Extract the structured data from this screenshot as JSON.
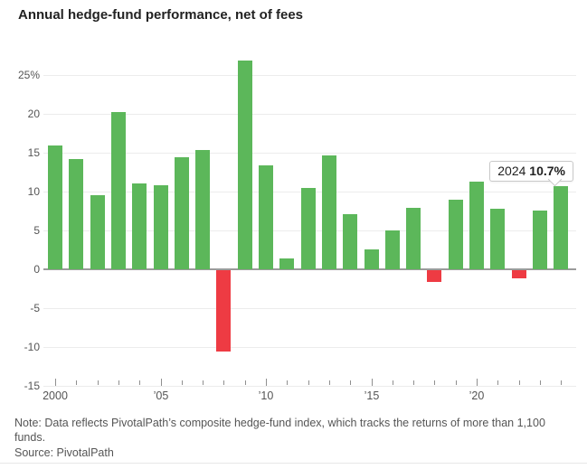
{
  "header": {
    "title": "Annual hedge-fund performance, net of fees"
  },
  "chart_data": {
    "type": "bar",
    "title": "Annual hedge-fund performance, net of fees",
    "categories": [
      2000,
      2001,
      2002,
      2003,
      2004,
      2005,
      2006,
      2007,
      2008,
      2009,
      2010,
      2011,
      2012,
      2013,
      2014,
      2015,
      2016,
      2017,
      2018,
      2019,
      2020,
      2021,
      2022,
      2023,
      2024
    ],
    "values": [
      15.9,
      14.2,
      9.5,
      20.2,
      11.1,
      10.8,
      14.4,
      15.4,
      -10.5,
      26.9,
      13.4,
      1.4,
      10.5,
      14.6,
      7.1,
      2.6,
      5.0,
      7.9,
      -1.5,
      9.0,
      11.3,
      7.8,
      -1.0,
      7.6,
      10.7
    ],
    "units": "percent",
    "ylim": [
      -15,
      27.5
    ],
    "yticks": [
      25,
      20,
      15,
      10,
      5,
      0,
      -5,
      -10,
      -15
    ],
    "ytick_labels": [
      "25%",
      "20",
      "15",
      "10",
      "5",
      "0",
      "-5",
      "-10",
      "-15"
    ],
    "xticks": [
      {
        "year": 2000,
        "label": "2000",
        "major": true
      },
      {
        "year": 2005,
        "label": "’05",
        "major": true
      },
      {
        "year": 2010,
        "label": "’10",
        "major": true
      },
      {
        "year": 2015,
        "label": "’15",
        "major": true
      },
      {
        "year": 2020,
        "label": "’20",
        "major": true
      }
    ],
    "grid": true,
    "legend": "none",
    "positive_color": "#5cb75a",
    "negative_color": "#ee3b43",
    "annotation": {
      "year": "2024",
      "value_label": "10.7%"
    }
  },
  "footer": {
    "note": "Note: Data reflects PivotalPath’s composite hedge-fund index, which tracks the returns of more than 1,100 funds.",
    "source": "Source: PivotalPath"
  }
}
